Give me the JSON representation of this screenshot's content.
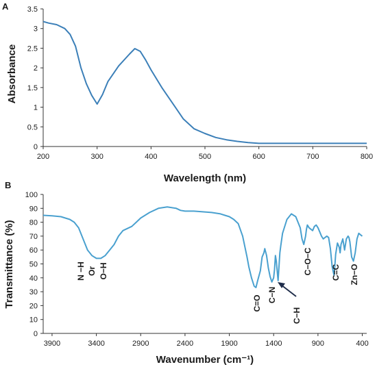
{
  "chart_data": [
    {
      "panel": "A",
      "type": "line",
      "xlabel": "Wavelength (nm)",
      "ylabel": "Absorbance",
      "xlim": [
        200,
        800
      ],
      "ylim": [
        0,
        3.5
      ],
      "x_ticks": [
        200,
        300,
        400,
        500,
        600,
        700,
        800
      ],
      "y_ticks": [
        0,
        0.5,
        1,
        1.5,
        2,
        2.5,
        3,
        3.5
      ],
      "y_tick_labels": [
        "0",
        "0.5",
        "1",
        "1.5",
        "2",
        "2.5",
        "3",
        "3.5"
      ],
      "color": "#3b7fb8",
      "grid": false,
      "series": [
        {
          "x": [
            200,
            210,
            225,
            240,
            250,
            260,
            270,
            280,
            290,
            300,
            310,
            320,
            340,
            360,
            370,
            380,
            390,
            400,
            420,
            440,
            460,
            480,
            500,
            520,
            540,
            560,
            580,
            600,
            650,
            700,
            750,
            800
          ],
          "y": [
            3.18,
            3.14,
            3.1,
            3.0,
            2.85,
            2.55,
            2.0,
            1.6,
            1.3,
            1.08,
            1.32,
            1.65,
            2.05,
            2.35,
            2.49,
            2.42,
            2.2,
            1.95,
            1.5,
            1.1,
            0.7,
            0.45,
            0.33,
            0.23,
            0.17,
            0.13,
            0.1,
            0.08,
            0.08,
            0.08,
            0.08,
            0.08
          ]
        }
      ]
    },
    {
      "panel": "B",
      "type": "line",
      "xlabel": "Wavenumber (cm⁻¹)",
      "ylabel": "Transmittance (%)",
      "xlim": [
        4000,
        350
      ],
      "ylim": [
        0,
        100
      ],
      "x_ticks": [
        3900,
        3400,
        2900,
        2400,
        1900,
        1400,
        900,
        400
      ],
      "y_ticks": [
        0,
        10,
        20,
        30,
        40,
        50,
        60,
        70,
        80,
        90,
        100
      ],
      "color": "#49a0cf",
      "grid": false,
      "series": [
        {
          "x": [
            4000,
            3900,
            3800,
            3750,
            3700,
            3650,
            3600,
            3550,
            3500,
            3450,
            3400,
            3350,
            3300,
            3250,
            3200,
            3150,
            3100,
            3000,
            2950,
            2900,
            2800,
            2700,
            2600,
            2500,
            2450,
            2400,
            2300,
            2200,
            2100,
            2000,
            1950,
            1900,
            1850,
            1800,
            1750,
            1700,
            1680,
            1650,
            1620,
            1600,
            1580,
            1550,
            1530,
            1510,
            1500,
            1480,
            1460,
            1440,
            1420,
            1400,
            1390,
            1380,
            1370,
            1360,
            1350,
            1340,
            1330,
            1320,
            1300,
            1250,
            1200,
            1150,
            1100,
            1080,
            1060,
            1040,
            1030,
            1020,
            1000,
            980,
            960,
            940,
            920,
            900,
            880,
            860,
            840,
            820,
            800,
            780,
            760,
            740,
            720,
            710,
            700,
            680,
            660,
            650,
            640,
            620,
            600,
            580,
            560,
            550,
            540,
            520,
            500,
            480,
            460,
            440,
            420,
            400
          ],
          "y": [
            85,
            84.6,
            84,
            83,
            82,
            80,
            76,
            68,
            60,
            56,
            54,
            54,
            56,
            60,
            64,
            70,
            74,
            77,
            80,
            83,
            87,
            90,
            91,
            90,
            88.5,
            88,
            88,
            87.5,
            87,
            86,
            85,
            84,
            82,
            79,
            70,
            55,
            48,
            40,
            34,
            33,
            38,
            45,
            55,
            58,
            61,
            56,
            47,
            41,
            37,
            40,
            46,
            56,
            52,
            45,
            38,
            48,
            58,
            63,
            72,
            82,
            86,
            84,
            76,
            68,
            64,
            70,
            75,
            78,
            76,
            75,
            74,
            77,
            78,
            76,
            73,
            70,
            68,
            69,
            70,
            69,
            61,
            48,
            42,
            48,
            57,
            65,
            62,
            58,
            64,
            68,
            60,
            68,
            70,
            69,
            66,
            55,
            52,
            58,
            68,
            72,
            71,
            70
          ]
        }
      ]
    }
  ],
  "figure": {
    "panel_a_label": "A",
    "panel_b_label": "B",
    "annotations": {
      "nh": "N −H",
      "or": "Or",
      "oh": "O−H",
      "co": "C=O",
      "cn": "C−N",
      "ch": "C−H",
      "coc": "C−O−C",
      "cc": "C=C",
      "zno": "Zn−O"
    }
  }
}
